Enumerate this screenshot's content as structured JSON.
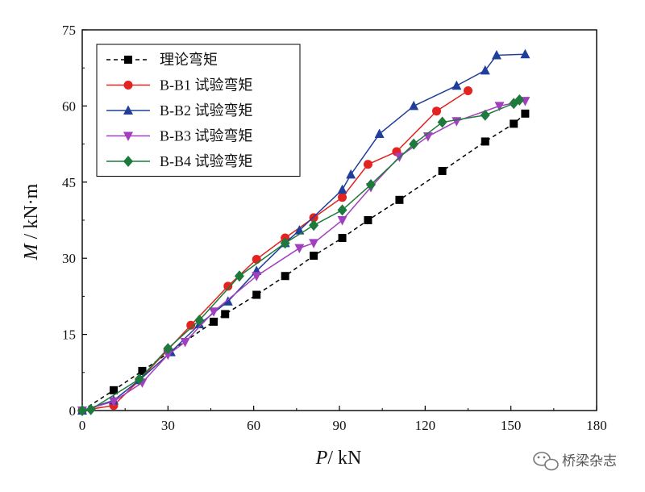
{
  "chart_data": {
    "type": "line",
    "xlabel_italic": "P",
    "xlabel_rest": "/ kN",
    "ylabel_italic": "M",
    "ylabel_rest": " / kN·m",
    "xlim": [
      0,
      180
    ],
    "ylim": [
      0,
      75
    ],
    "xticks": [
      0,
      30,
      60,
      90,
      120,
      150,
      180
    ],
    "yticks": [
      0,
      15,
      30,
      45,
      60,
      75
    ],
    "legend_position": "top-left",
    "series": [
      {
        "name": "理论弯矩",
        "color": "#000000",
        "marker": "square",
        "line": "dashed",
        "x": [
          0,
          11,
          21,
          46,
          50,
          61,
          71,
          81,
          91,
          100,
          111,
          126,
          141,
          151,
          155
        ],
        "y": [
          0,
          4,
          7.8,
          17.5,
          19,
          22.8,
          26.5,
          30.5,
          34,
          37.5,
          41.5,
          47.2,
          53,
          56.5,
          58.5
        ]
      },
      {
        "name": "B-B1 试验弯矩",
        "color": "#e3231f",
        "marker": "circle",
        "line": "solid",
        "x": [
          0,
          11,
          20,
          30,
          38,
          51,
          61,
          71,
          81,
          91,
          100,
          110,
          124,
          135
        ],
        "y": [
          0,
          1,
          6,
          12,
          16.8,
          24.5,
          29.8,
          34,
          38,
          42,
          48.5,
          51,
          59,
          63
        ]
      },
      {
        "name": "B-B2 试验弯矩",
        "color": "#1f3f9a",
        "marker": "triangle-up",
        "line": "solid",
        "x": [
          0,
          11,
          20,
          31,
          41,
          51,
          61,
          71,
          76,
          91,
          94,
          104,
          116,
          131,
          141,
          145,
          155
        ],
        "y": [
          0,
          2,
          6,
          11.5,
          17,
          21.5,
          27.5,
          33,
          35.5,
          43.5,
          46.5,
          54.5,
          60,
          64,
          67,
          70,
          70.2
        ]
      },
      {
        "name": "B-B3 试验弯矩",
        "color": "#a23fbf",
        "marker": "triangle-down",
        "line": "solid",
        "x": [
          0,
          11,
          21,
          30,
          36,
          46,
          61,
          76,
          81,
          91,
          101,
          111,
          121,
          131,
          146,
          155
        ],
        "y": [
          0,
          1.8,
          5.5,
          11,
          13.5,
          19.5,
          26.5,
          32,
          33,
          37.5,
          44,
          50,
          54,
          57,
          60,
          61
        ]
      },
      {
        "name": "B-B4 试验弯矩",
        "color": "#1e7a3c",
        "marker": "diamond",
        "line": "solid",
        "x": [
          0,
          3,
          20,
          30,
          41,
          55,
          71,
          81,
          91,
          101,
          116,
          126,
          141,
          151,
          153
        ],
        "y": [
          0,
          0.2,
          6.2,
          12.2,
          17.8,
          26.5,
          33,
          36.5,
          39.5,
          44.5,
          52.5,
          56.8,
          58.2,
          60.5,
          61.2
        ]
      }
    ]
  },
  "watermark": {
    "text": "桥梁杂志",
    "icon": "wechat-icon"
  }
}
